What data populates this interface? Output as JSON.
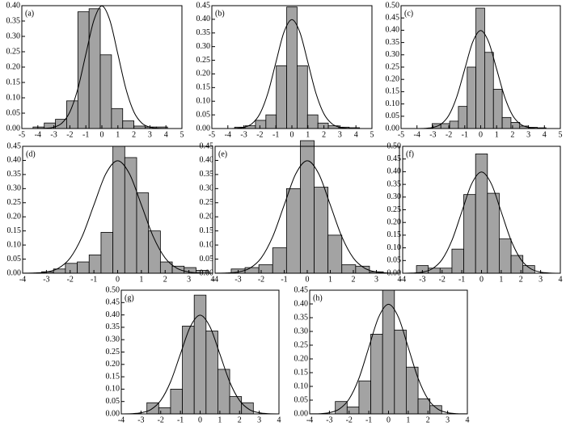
{
  "chart_data": [
    {
      "type": "histogram",
      "label": "(a)",
      "xlim": [
        -5,
        5
      ],
      "ylim": [
        0,
        0.4
      ],
      "xticks": [
        -5,
        -4,
        -3,
        -2,
        -1,
        0,
        1,
        2,
        3,
        4,
        5
      ],
      "yticks": [
        {
          "value": 0,
          "label": "0.00"
        },
        {
          "value": 0.05,
          "label": "0.05"
        },
        {
          "value": 0.1,
          "label": "0.10"
        },
        {
          "value": 0.15,
          "label": "0.15"
        },
        {
          "value": 0.2,
          "label": "0.20"
        },
        {
          "value": 0.25,
          "label": "0.25"
        },
        {
          "value": 0.3,
          "label": "0.30"
        },
        {
          "value": 0.35,
          "label": "0.35"
        },
        {
          "value": 0.4,
          "label": "0.40"
        }
      ],
      "bins": [
        -4.3,
        -3.6,
        -2.9,
        -2.2,
        -1.5,
        -0.8,
        -0.1,
        0.6,
        1.3,
        2.0,
        2.7,
        3.4,
        4.1
      ],
      "counts": [
        0.005,
        0.018,
        0.03,
        0.09,
        0.38,
        0.39,
        0.24,
        0.065,
        0.025,
        0.008,
        0.005,
        0.005
      ],
      "line": {
        "x": [
          -5,
          -4.5,
          -4,
          -3.5,
          -3,
          -2.5,
          -2,
          -1.5,
          -1,
          -0.5,
          0,
          0.5,
          1,
          1.5,
          2,
          2.5,
          3,
          3.5,
          4,
          4.5,
          5
        ],
        "values": [
          0,
          0,
          0.0001,
          0.0009,
          0.0044,
          0.0175,
          0.054,
          0.1295,
          0.242,
          0.3521,
          0.3989,
          0.3521,
          0.242,
          0.1295,
          0.054,
          0.0175,
          0.0044,
          0.0009,
          0.0001,
          0,
          0
        ]
      }
    },
    {
      "type": "histogram",
      "label": "(b)",
      "xlim": [
        -5,
        5
      ],
      "ylim": [
        0,
        0.45
      ],
      "xticks": [
        -5,
        -4,
        -3,
        -2,
        -1,
        0,
        1,
        2,
        3,
        4,
        5
      ],
      "yticks": [
        {
          "value": 0,
          "label": "0.00"
        },
        {
          "value": 0.05,
          "label": "0.05"
        },
        {
          "value": 0.1,
          "label": "0.10"
        },
        {
          "value": 0.15,
          "label": "0.15"
        },
        {
          "value": 0.2,
          "label": "0.20"
        },
        {
          "value": 0.25,
          "label": "0.25"
        },
        {
          "value": 0.3,
          "label": "0.30"
        },
        {
          "value": 0.35,
          "label": "0.35"
        },
        {
          "value": 0.4,
          "label": "0.40"
        },
        {
          "value": 0.45,
          "label": "0.45"
        }
      ],
      "bins": [
        -3.575,
        -2.925,
        -2.275,
        -1.625,
        -0.975,
        -0.325,
        0.325,
        0.975,
        1.625,
        2.275,
        2.925,
        3.575,
        4.225
      ],
      "counts": [
        0.005,
        0.01,
        0.03,
        0.05,
        0.23,
        0.445,
        0.23,
        0.05,
        0.02,
        0.01,
        0.005,
        0.003
      ],
      "line": {
        "x": [
          -5,
          -4.5,
          -4,
          -3.5,
          -3,
          -2.5,
          -2,
          -1.5,
          -1,
          -0.5,
          0,
          0.5,
          1,
          1.5,
          2,
          2.5,
          3,
          3.5,
          4,
          4.5,
          5
        ],
        "values": [
          0,
          0,
          0.0001,
          0.0009,
          0.0044,
          0.0175,
          0.054,
          0.1295,
          0.242,
          0.3521,
          0.3989,
          0.3521,
          0.242,
          0.1295,
          0.054,
          0.0175,
          0.0044,
          0.0009,
          0.0001,
          0,
          0
        ]
      }
    },
    {
      "type": "histogram",
      "label": "(c)",
      "xlim": [
        -5,
        5
      ],
      "ylim": [
        0,
        0.5
      ],
      "xticks": [
        -5,
        -4,
        -3,
        -2,
        -1,
        0,
        1,
        2,
        3,
        4,
        5
      ],
      "yticks": [
        {
          "value": 0,
          "label": "0.00"
        },
        {
          "value": 0.05,
          "label": "0.05"
        },
        {
          "value": 0.1,
          "label": "0.10"
        },
        {
          "value": 0.15,
          "label": "0.15"
        },
        {
          "value": 0.2,
          "label": "0.20"
        },
        {
          "value": 0.25,
          "label": "0.25"
        },
        {
          "value": 0.3,
          "label": "0.30"
        },
        {
          "value": 0.35,
          "label": "0.35"
        },
        {
          "value": 0.4,
          "label": "0.40"
        },
        {
          "value": 0.45,
          "label": "0.45"
        },
        {
          "value": 0.5,
          "label": "0.50"
        }
      ],
      "bins": [
        -3.05,
        -2.5,
        -1.95,
        -1.4,
        -0.85,
        -0.3,
        0.25,
        0.8,
        1.35,
        1.9,
        2.45,
        3.0,
        3.55,
        4.1
      ],
      "counts": [
        0.02,
        0.02,
        0.03,
        0.09,
        0.25,
        0.49,
        0.31,
        0.16,
        0.045,
        0.025,
        0.01,
        0.005,
        0.003
      ],
      "line": {
        "x": [
          -5,
          -4.5,
          -4,
          -3.5,
          -3,
          -2.5,
          -2,
          -1.5,
          -1,
          -0.5,
          0,
          0.5,
          1,
          1.5,
          2,
          2.5,
          3,
          3.5,
          4,
          4.5,
          5
        ],
        "values": [
          0,
          0,
          0.0001,
          0.0009,
          0.0044,
          0.0175,
          0.054,
          0.1295,
          0.242,
          0.3521,
          0.3989,
          0.3521,
          0.242,
          0.1295,
          0.054,
          0.0175,
          0.0044,
          0.0009,
          0.0001,
          0,
          0
        ]
      }
    },
    {
      "type": "histogram",
      "label": "(d)",
      "xlim": [
        -4,
        4
      ],
      "ylim": [
        0,
        0.45
      ],
      "xticks": [
        -4,
        -3,
        -2,
        -1,
        0,
        1,
        2,
        3,
        4
      ],
      "yticks": [
        {
          "value": 0,
          "label": "0.00"
        },
        {
          "value": 0.05,
          "label": "0.05"
        },
        {
          "value": 0.1,
          "label": "0.10"
        },
        {
          "value": 0.15,
          "label": "0.15"
        },
        {
          "value": 0.2,
          "label": "0.20"
        },
        {
          "value": 0.25,
          "label": "0.25"
        },
        {
          "value": 0.3,
          "label": "0.30"
        },
        {
          "value": 0.35,
          "label": "0.35"
        },
        {
          "value": 0.4,
          "label": "0.40"
        },
        {
          "value": 0.45,
          "label": "0.45"
        }
      ],
      "bins": [
        -3.2,
        -2.7,
        -2.2,
        -1.7,
        -1.2,
        -0.7,
        -0.2,
        0.3,
        0.8,
        1.3,
        1.8,
        2.3,
        2.8,
        3.3,
        3.8
      ],
      "counts": [
        0.005,
        0.015,
        0.035,
        0.04,
        0.065,
        0.145,
        0.45,
        0.41,
        0.285,
        0.15,
        0.04,
        0.025,
        0.02,
        0.01
      ],
      "line": {
        "x": [
          -4,
          -3.5,
          -3,
          -2.5,
          -2,
          -1.5,
          -1,
          -0.5,
          0,
          0.5,
          1,
          1.5,
          2,
          2.5,
          3,
          3.5,
          4
        ],
        "values": [
          0.0001,
          0.0009,
          0.0044,
          0.0175,
          0.054,
          0.1295,
          0.242,
          0.3521,
          0.3989,
          0.3521,
          0.242,
          0.1295,
          0.054,
          0.0175,
          0.0044,
          0.0009,
          0.0001
        ]
      }
    },
    {
      "type": "histogram",
      "label": "(e)",
      "xlim": [
        -4,
        4
      ],
      "ylim": [
        0,
        0.45
      ],
      "xticks": [
        -4,
        -3,
        -2,
        -1,
        0,
        1,
        2,
        3,
        4
      ],
      "yticks": [
        {
          "value": 0,
          "label": "0.00"
        },
        {
          "value": 0.05,
          "label": "0.05"
        },
        {
          "value": 0.1,
          "label": "0.10"
        },
        {
          "value": 0.15,
          "label": "0.15"
        },
        {
          "value": 0.2,
          "label": "0.20"
        },
        {
          "value": 0.25,
          "label": "0.25"
        },
        {
          "value": 0.3,
          "label": "0.30"
        },
        {
          "value": 0.35,
          "label": "0.35"
        },
        {
          "value": 0.4,
          "label": "0.40"
        },
        {
          "value": 0.45,
          "label": "0.45"
        }
      ],
      "bins": [
        -3.3,
        -2.7,
        -2.1,
        -1.5,
        -0.9,
        -0.3,
        0.3,
        0.9,
        1.5,
        2.1,
        2.7,
        3.3
      ],
      "counts": [
        0.015,
        0.02,
        0.03,
        0.09,
        0.3,
        0.47,
        0.305,
        0.135,
        0.03,
        0.025,
        0.005
      ],
      "line": {
        "x": [
          -4,
          -3.5,
          -3,
          -2.5,
          -2,
          -1.5,
          -1,
          -0.5,
          0,
          0.5,
          1,
          1.5,
          2,
          2.5,
          3,
          3.5,
          4
        ],
        "values": [
          0.0001,
          0.0009,
          0.0044,
          0.0175,
          0.054,
          0.1295,
          0.242,
          0.3521,
          0.3989,
          0.3521,
          0.242,
          0.1295,
          0.054,
          0.0175,
          0.0044,
          0.0009,
          0.0001
        ]
      }
    },
    {
      "type": "histogram",
      "label": "(f)",
      "xlim": [
        -4,
        4
      ],
      "ylim": [
        0,
        0.5
      ],
      "xticks": [
        -4,
        -3,
        -2,
        -1,
        0,
        1,
        2,
        3,
        4
      ],
      "yticks": [
        {
          "value": 0,
          "label": "0.00"
        },
        {
          "value": 0.05,
          "label": "0.05"
        },
        {
          "value": 0.1,
          "label": "0.10"
        },
        {
          "value": 0.15,
          "label": "0.15"
        },
        {
          "value": 0.2,
          "label": "0.20"
        },
        {
          "value": 0.25,
          "label": "0.25"
        },
        {
          "value": 0.3,
          "label": "0.30"
        },
        {
          "value": 0.35,
          "label": "0.35"
        },
        {
          "value": 0.4,
          "label": "0.40"
        },
        {
          "value": 0.45,
          "label": "0.45"
        },
        {
          "value": 0.5,
          "label": "0.50"
        }
      ],
      "bins": [
        -3.3,
        -2.7,
        -2.1,
        -1.5,
        -0.9,
        -0.3,
        0.3,
        0.9,
        1.5,
        2.1,
        2.7
      ],
      "counts": [
        0.03,
        0.02,
        0.02,
        0.095,
        0.31,
        0.47,
        0.315,
        0.135,
        0.07,
        0.03
      ],
      "line": {
        "x": [
          -4,
          -3.5,
          -3,
          -2.5,
          -2,
          -1.5,
          -1,
          -0.5,
          0,
          0.5,
          1,
          1.5,
          2,
          2.5,
          3,
          3.5,
          4
        ],
        "values": [
          0.0001,
          0.0009,
          0.0044,
          0.0175,
          0.054,
          0.1295,
          0.242,
          0.3521,
          0.3989,
          0.3521,
          0.242,
          0.1295,
          0.054,
          0.0175,
          0.0044,
          0.0009,
          0.0001
        ]
      }
    },
    {
      "type": "histogram",
      "label": "(g)",
      "xlim": [
        -4,
        4
      ],
      "ylim": [
        0,
        0.5
      ],
      "xticks": [
        -4,
        -3,
        -2,
        -1,
        0,
        1,
        2,
        3,
        4
      ],
      "yticks": [
        {
          "value": 0,
          "label": "0.00"
        },
        {
          "value": 0.05,
          "label": "0.05"
        },
        {
          "value": 0.1,
          "label": "0.10"
        },
        {
          "value": 0.15,
          "label": "0.15"
        },
        {
          "value": 0.2,
          "label": "0.20"
        },
        {
          "value": 0.25,
          "label": "0.25"
        },
        {
          "value": 0.3,
          "label": "0.30"
        },
        {
          "value": 0.35,
          "label": "0.35"
        },
        {
          "value": 0.4,
          "label": "0.40"
        },
        {
          "value": 0.45,
          "label": "0.45"
        },
        {
          "value": 0.5,
          "label": "0.50"
        }
      ],
      "bins": [
        -2.7,
        -2.1,
        -1.5,
        -0.9,
        -0.3,
        0.3,
        0.9,
        1.5,
        2.1,
        2.7
      ],
      "counts": [
        0.045,
        0.025,
        0.1,
        0.355,
        0.48,
        0.335,
        0.18,
        0.07,
        0.045
      ],
      "line": {
        "x": [
          -4,
          -3.5,
          -3,
          -2.5,
          -2,
          -1.5,
          -1,
          -0.5,
          0,
          0.5,
          1,
          1.5,
          2,
          2.5,
          3,
          3.5,
          4
        ],
        "values": [
          0.0001,
          0.0009,
          0.0044,
          0.0175,
          0.054,
          0.1295,
          0.242,
          0.3521,
          0.3989,
          0.3521,
          0.242,
          0.1295,
          0.054,
          0.0175,
          0.0044,
          0.0009,
          0.0001
        ]
      }
    },
    {
      "type": "histogram",
      "label": "(h)",
      "xlim": [
        -4,
        4
      ],
      "ylim": [
        0,
        0.45
      ],
      "xticks": [
        -4,
        -3,
        -2,
        -1,
        0,
        1,
        2,
        3,
        4
      ],
      "yticks": [
        {
          "value": 0,
          "label": "0.00"
        },
        {
          "value": 0.05,
          "label": "0.05"
        },
        {
          "value": 0.1,
          "label": "0.10"
        },
        {
          "value": 0.15,
          "label": "0.15"
        },
        {
          "value": 0.2,
          "label": "0.20"
        },
        {
          "value": 0.25,
          "label": "0.25"
        },
        {
          "value": 0.3,
          "label": "0.30"
        },
        {
          "value": 0.35,
          "label": "0.35"
        },
        {
          "value": 0.4,
          "label": "0.40"
        },
        {
          "value": 0.45,
          "label": "0.45"
        }
      ],
      "bins": [
        -2.7,
        -2.1,
        -1.5,
        -0.9,
        -0.3,
        0.3,
        0.9,
        1.5,
        2.1,
        2.7
      ],
      "counts": [
        0.045,
        0.025,
        0.12,
        0.29,
        0.45,
        0.305,
        0.17,
        0.055,
        0.03
      ],
      "line": {
        "x": [
          -4,
          -3.5,
          -3,
          -2.5,
          -2,
          -1.5,
          -1,
          -0.5,
          0,
          0.5,
          1,
          1.5,
          2,
          2.5,
          3,
          3.5,
          4
        ],
        "values": [
          0.0001,
          0.0009,
          0.0044,
          0.0175,
          0.054,
          0.1295,
          0.242,
          0.3521,
          0.3989,
          0.3521,
          0.242,
          0.1295,
          0.054,
          0.0175,
          0.0044,
          0.0009,
          0.0001
        ]
      }
    }
  ]
}
